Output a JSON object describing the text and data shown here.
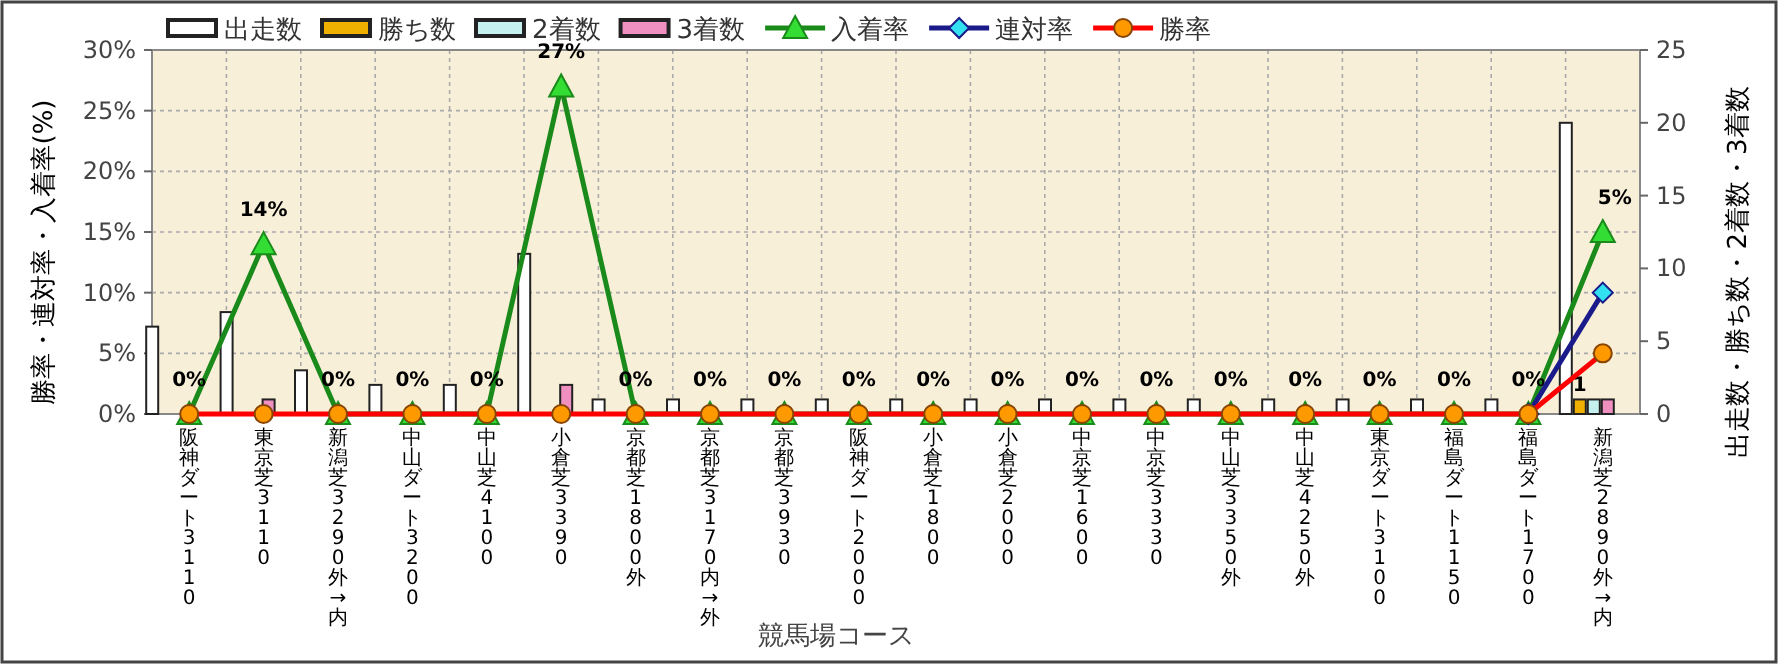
{
  "chart_data": {
    "type": "bar",
    "xlabel": "競馬場コース",
    "ylabel": "勝率・連対率・入着率(%)",
    "y2label": "出走数・勝ち数・2着数・3着数",
    "categories": [
      "阪神ダート3110",
      "東京芝3110",
      "新潟芝3290外→内",
      "中山ダート3200",
      "中山芝4100",
      "小倉芝3390",
      "京都芝1800外",
      "京都芝3170内→外",
      "京都芝3930",
      "阪神ダート2000",
      "小倉芝1800",
      "小倉芝2000",
      "中京芝1600",
      "中京芝3330",
      "中山芝3350外",
      "中山芝4250外",
      "東京ダート3100",
      "福島ダート1150",
      "福島ダート1700",
      "新潟芝2890外→内"
    ],
    "series": [
      {
        "name": "出走数",
        "axis": "y2",
        "color": "#ffffff",
        "values": [
          6,
          7,
          3,
          2,
          2,
          11,
          1,
          1,
          1,
          1,
          1,
          1,
          1,
          1,
          1,
          1,
          1,
          1,
          1,
          20
        ]
      },
      {
        "name": "勝ち数",
        "axis": "y2",
        "color": "#f0b000",
        "values": [
          0,
          0,
          0,
          0,
          0,
          0,
          0,
          0,
          0,
          0,
          0,
          0,
          0,
          0,
          0,
          0,
          0,
          0,
          0,
          1
        ],
        "value_labels": [
          null,
          null,
          null,
          null,
          null,
          null,
          null,
          null,
          null,
          null,
          null,
          null,
          null,
          null,
          null,
          null,
          null,
          null,
          null,
          "1"
        ]
      },
      {
        "name": "2着数",
        "axis": "y2",
        "color": "#c4f0f0",
        "values": [
          0,
          0,
          0,
          0,
          0,
          0,
          0,
          0,
          0,
          0,
          0,
          0,
          0,
          0,
          0,
          0,
          0,
          0,
          0,
          1
        ]
      },
      {
        "name": "3着数",
        "axis": "y2",
        "color": "#f090c0",
        "values": [
          0,
          1,
          0,
          0,
          0,
          2,
          0,
          0,
          0,
          0,
          0,
          0,
          0,
          0,
          0,
          0,
          0,
          0,
          0,
          1
        ]
      },
      {
        "name": "入着率",
        "type": "line",
        "marker": "triangle",
        "color": "#1a8a1a",
        "values": [
          0,
          14,
          0,
          0,
          0,
          27,
          0,
          0,
          0,
          0,
          0,
          0,
          0,
          0,
          0,
          0,
          0,
          0,
          0,
          15
        ],
        "value_labels": [
          "0%",
          "14%",
          "0%",
          "0%",
          "0%",
          "27%",
          "0%",
          "0%",
          "0%",
          "0%",
          "0%",
          "0%",
          "0%",
          "0%",
          "0%",
          "0%",
          "0%",
          "0%",
          "0%",
          null
        ]
      },
      {
        "name": "連対率",
        "type": "line",
        "marker": "diamond",
        "color": "#1a1a8a",
        "values": [
          null,
          null,
          null,
          null,
          null,
          null,
          null,
          null,
          null,
          null,
          null,
          null,
          null,
          null,
          null,
          null,
          null,
          null,
          0,
          10
        ]
      },
      {
        "name": "勝率",
        "type": "line",
        "marker": "circle",
        "color": "#ff0000",
        "values": [
          0,
          0,
          0,
          0,
          0,
          0,
          0,
          0,
          0,
          0,
          0,
          0,
          0,
          0,
          0,
          0,
          0,
          0,
          0,
          5
        ]
      }
    ],
    "annotations": [
      {
        "text": "5%",
        "x": "新潟芝2890外→内",
        "y": 15
      }
    ],
    "ylim": [
      0,
      30
    ],
    "yticks": [
      {
        "value": 0,
        "label": "0%"
      },
      {
        "value": 5,
        "label": "5%"
      },
      {
        "value": 10,
        "label": "10%"
      },
      {
        "value": 15,
        "label": "15%"
      },
      {
        "value": 20,
        "label": "20%"
      },
      {
        "value": 25,
        "label": "25%"
      },
      {
        "value": 30,
        "label": "30%"
      }
    ],
    "y2lim": [
      0,
      25
    ],
    "y2ticks": [
      0,
      5,
      10,
      15,
      20,
      25
    ],
    "grid": true,
    "legend": "top"
  }
}
